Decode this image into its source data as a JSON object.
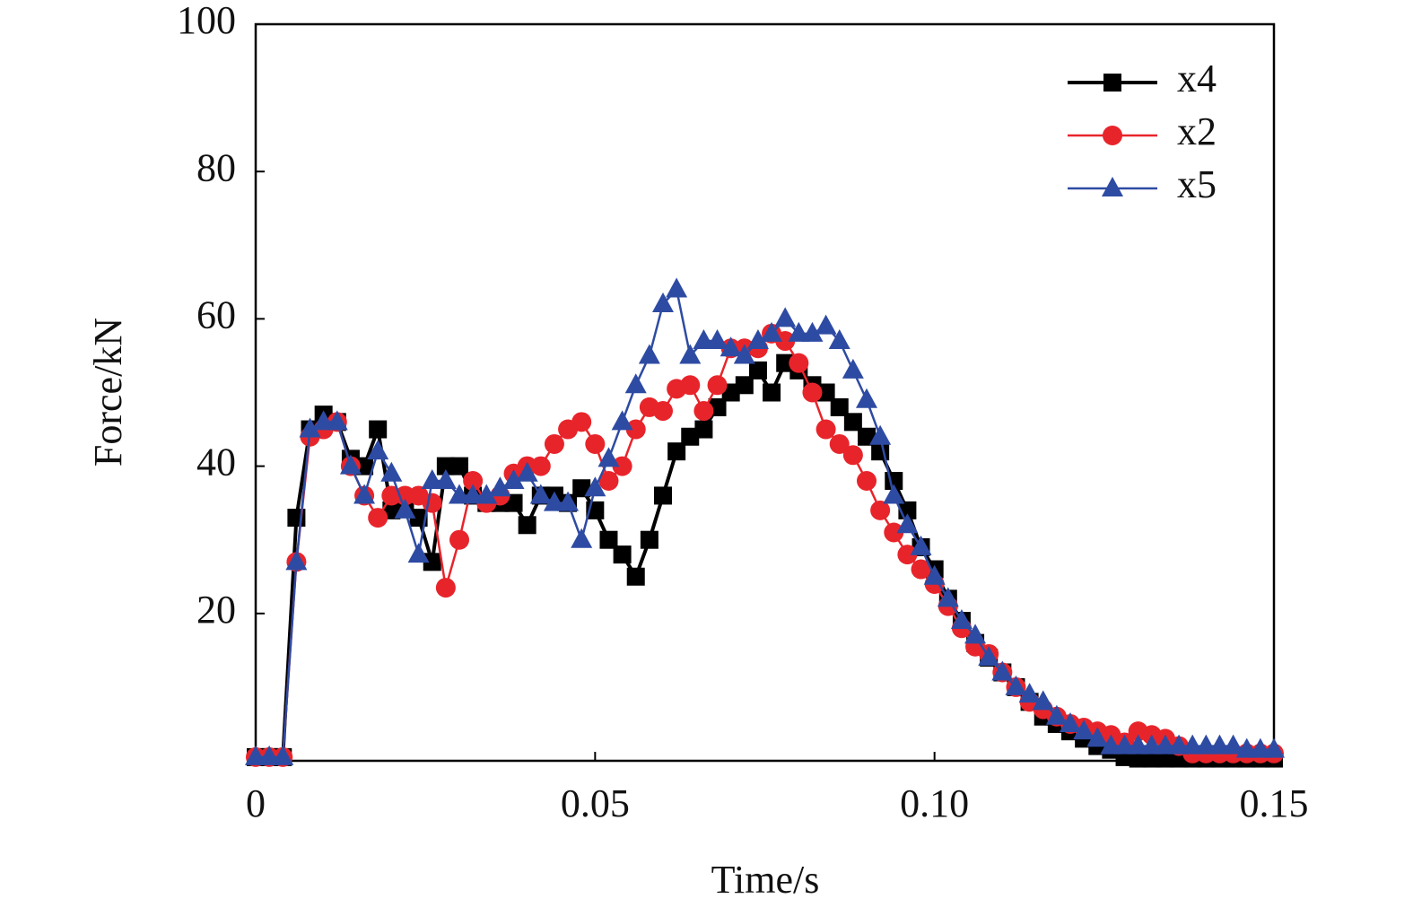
{
  "chart_data": {
    "type": "line",
    "xlabel": "Time/s",
    "ylabel": "Force/kN",
    "xlim": [
      0,
      0.15
    ],
    "xticks": [
      0,
      0.05,
      {
        "value": 0.1,
        "label": "0.10"
      },
      0.15
    ],
    "ylim": [
      0,
      100
    ],
    "yticks": [
      20,
      40,
      60,
      80,
      100
    ],
    "legend": "upper right",
    "x": [
      0,
      0.002,
      0.004,
      0.006,
      0.008,
      0.01,
      0.012,
      0.014,
      0.016,
      0.018,
      0.02,
      0.022,
      0.024,
      0.026,
      0.028,
      0.03,
      0.032,
      0.034,
      0.036,
      0.038,
      0.04,
      0.042,
      0.044,
      0.046,
      0.048,
      0.05,
      0.052,
      0.054,
      0.056,
      0.058,
      0.06,
      0.062,
      0.064,
      0.066,
      0.068,
      0.07,
      0.072,
      0.074,
      0.076,
      0.078,
      0.08,
      0.082,
      0.084,
      0.086,
      0.088,
      0.09,
      0.092,
      0.094,
      0.096,
      0.098,
      0.1,
      0.102,
      0.104,
      0.106,
      0.108,
      0.11,
      0.112,
      0.114,
      0.116,
      0.118,
      0.12,
      0.122,
      0.124,
      0.126,
      0.128,
      0.13,
      0.132,
      0.134,
      0.136,
      0.138,
      0.14,
      0.142,
      0.144,
      0.146,
      0.148,
      0.15
    ],
    "series": [
      {
        "name": "x4",
        "color": "#000000",
        "marker": "square",
        "values": [
          0.5,
          0.5,
          0.5,
          33,
          45,
          47,
          46,
          41,
          40,
          45,
          34,
          35,
          33,
          27,
          40,
          40,
          36,
          35,
          35,
          35,
          32,
          36,
          36,
          35,
          37,
          34,
          30,
          28,
          25,
          30,
          36,
          42,
          44,
          45,
          48,
          50,
          51,
          53,
          50,
          54,
          53,
          51,
          50,
          48,
          46,
          44,
          42,
          38,
          34,
          29,
          26,
          22,
          19,
          16,
          14,
          12,
          10,
          8,
          6,
          5,
          4,
          3,
          2,
          1.5,
          0.5,
          0.3,
          0.3,
          0.3,
          0.3,
          0.3,
          0.3,
          0.3,
          0.3,
          0.3,
          0.3,
          0.3
        ]
      },
      {
        "name": "x2",
        "color": "#e8242b",
        "marker": "circle",
        "values": [
          0.5,
          0.5,
          0.5,
          27,
          44,
          45,
          46,
          40,
          36,
          33,
          36,
          36,
          36,
          35,
          23.5,
          30,
          38,
          35,
          36,
          39,
          40,
          40,
          43,
          45,
          46,
          43,
          38,
          40,
          45,
          48,
          47.5,
          50.5,
          51,
          47.5,
          51,
          56,
          56,
          56,
          58,
          57,
          54,
          50,
          45,
          43,
          41.5,
          38,
          34,
          31,
          28,
          26,
          24,
          21,
          18,
          15.5,
          14.5,
          12,
          10,
          8,
          7,
          6,
          5,
          4.5,
          4,
          3.5,
          2.5,
          4,
          3.5,
          3,
          2,
          1,
          1,
          1,
          1,
          1,
          1,
          1
        ]
      },
      {
        "name": "x5",
        "color": "#2e4ba3",
        "marker": "triangle",
        "values": [
          0.5,
          0.5,
          0.5,
          27,
          45,
          46,
          46,
          40,
          36,
          42,
          39,
          34,
          28,
          38,
          38,
          36,
          36,
          36,
          37,
          38,
          39,
          36,
          35,
          35,
          30,
          37,
          41,
          46,
          51,
          55,
          62,
          64,
          55,
          57,
          57,
          56,
          55,
          57,
          58,
          60,
          58,
          58,
          59,
          57,
          53,
          49,
          44,
          36,
          32,
          29,
          25,
          22,
          19,
          17,
          14,
          12,
          10,
          9,
          8,
          6,
          5,
          4,
          3,
          2,
          2,
          2,
          2,
          2,
          2,
          2,
          2,
          2,
          2,
          1.5,
          1.5,
          1.5
        ]
      }
    ]
  }
}
